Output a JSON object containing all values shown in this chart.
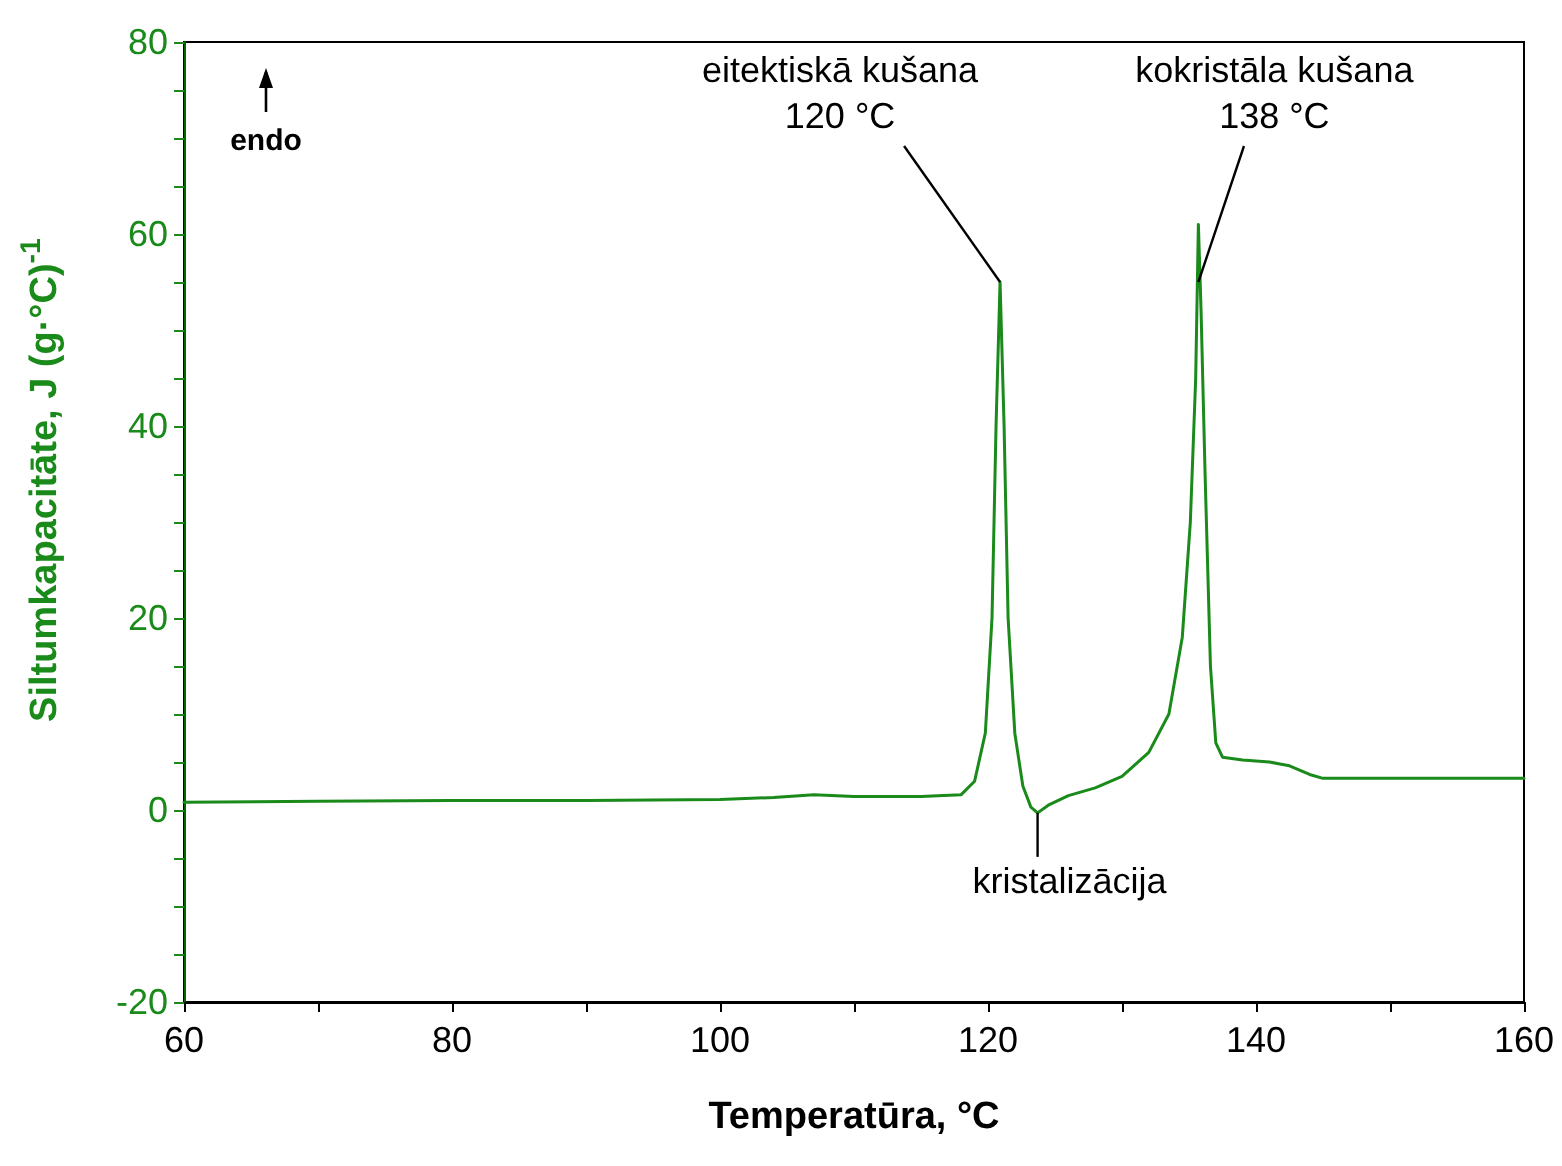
{
  "chart_data": {
    "type": "line",
    "xlabel": "Temperatūra, °C",
    "ylabel": "Siltumkapacitāte, J (g·°C)$^{-1}$",
    "x": [
      60,
      70,
      80,
      90,
      100,
      104,
      107,
      110,
      115,
      118,
      119,
      119.8,
      120.3,
      120.6,
      120.9,
      121.2,
      121.5,
      122,
      122.6,
      123.2,
      123.7,
      124.5,
      126,
      128,
      130,
      132,
      133.5,
      134.5,
      135.1,
      135.5,
      135.7,
      135.9,
      136.2,
      136.6,
      137,
      137.5,
      139,
      141,
      142.5,
      144,
      145,
      150,
      160
    ],
    "series": [
      {
        "color": "#1a8a1a",
        "values": [
          0.8,
          0.9,
          1.0,
          1.0,
          1.1,
          1.3,
          1.6,
          1.4,
          1.4,
          1.6,
          3,
          8,
          20,
          40,
          55,
          40,
          20,
          8,
          2.5,
          0.3,
          -0.3,
          0.5,
          1.5,
          2.3,
          3.5,
          6,
          10,
          18,
          30,
          45,
          61,
          52,
          35,
          15,
          7,
          5.5,
          5.2,
          5,
          4.6,
          3.7,
          3.3,
          3.3,
          3.3
        ]
      }
    ],
    "xlim": [
      60,
      160
    ],
    "xticks": [
      60,
      {
        "value": 70,
        "label": null
      },
      80,
      {
        "value": 90,
        "label": null
      },
      100,
      {
        "value": 110,
        "label": null
      },
      120,
      {
        "value": 130,
        "label": null
      },
      140,
      {
        "value": 150,
        "label": null
      },
      160
    ],
    "ylim": [
      -20,
      80
    ],
    "yticks": [
      -20,
      {
        "value": -15,
        "label": null
      },
      {
        "value": -10,
        "label": null
      },
      {
        "value": -5,
        "label": null
      },
      0,
      {
        "value": 5,
        "label": null
      },
      {
        "value": 10,
        "label": null
      },
      {
        "value": 15,
        "label": null
      },
      20,
      {
        "value": 25,
        "label": null
      },
      {
        "value": 30,
        "label": null
      },
      {
        "value": 35,
        "label": null
      },
      40,
      {
        "value": 45,
        "label": null
      },
      {
        "value": 50,
        "label": null
      },
      {
        "value": 55,
        "label": null
      },
      60,
      {
        "value": 65,
        "label": null
      },
      {
        "value": 70,
        "label": null
      },
      {
        "value": 75,
        "label": null
      },
      80
    ],
    "annotations": [
      {
        "text": "eitektiskā kušana\n120 °C",
        "x": 120.9,
        "y": 55
      },
      {
        "text": "kokristāla kušana\n138 °C",
        "x": 135.7,
        "y": 55
      },
      {
        "text": "kristalizācija",
        "x": 123.7,
        "y": -0.3
      },
      "endo"
    ],
    "marker": "none",
    "line_style": "solid"
  }
}
